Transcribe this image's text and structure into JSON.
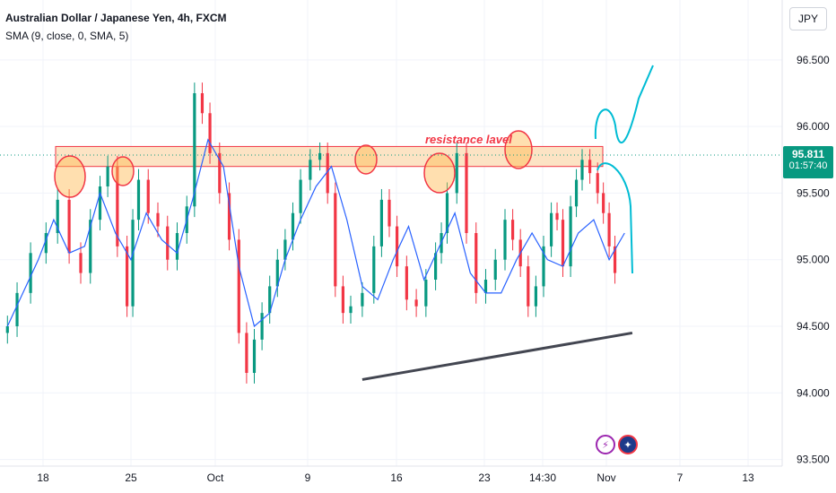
{
  "legend": {
    "title": "Australian Dollar / Japanese Yen, 4h, FXCM",
    "indicator": "SMA (9, close, 0, SMA, 5)"
  },
  "currency": "JPY",
  "last_price": {
    "value": "95.811",
    "countdown": "01:57:40"
  },
  "annotation_text": "resistance lavel",
  "colors": {
    "up": "#089981",
    "down": "#f23645",
    "sma": "#2962ff",
    "forecast": "#00bcd4",
    "zone": "#fce3c4"
  },
  "event_icons": [
    "lightning-icon",
    "australia-flag-icon"
  ],
  "chart_data": {
    "type": "candlestick",
    "title": "Australian Dollar / Japanese Yen, 4h, FXCM",
    "ylim": [
      93.45,
      96.95
    ],
    "y_ticks": [
      "96.500",
      "96.000",
      "95.500",
      "95.000",
      "94.500",
      "94.000",
      "93.500"
    ],
    "x_ticks": [
      "18",
      "25",
      "Oct",
      "9",
      "16",
      "23",
      "14:30",
      "Nov",
      "7",
      "13"
    ],
    "series": [
      {
        "name": "AUD/JPY 4h",
        "x": [
          1,
          3.5,
          7,
          11,
          14,
          17,
          20,
          22.5,
          25,
          27,
          29.5,
          32,
          33.5,
          35,
          37.5,
          40,
          42.5,
          45,
          47.5,
          49.5,
          51.5,
          53.5,
          56,
          58.5,
          61,
          63,
          65,
          67,
          69,
          71,
          73,
          75,
          77,
          79.5,
          82,
          84,
          86,
          88,
          90,
          93,
          96,
          98,
          100,
          102,
          104.5,
          107,
          109.5,
          112,
          113.5,
          115,
          117.5,
          120,
          122.5,
          125,
          127.5,
          130,
          132,
          134,
          136,
          138,
          140,
          142,
          143.5,
          145,
          147,
          148.5,
          150,
          152,
          154,
          155.5,
          157,
          158.5
        ],
        "values": [
          94.5,
          94.75,
          95.05,
          95.2,
          95.45,
          95.05,
          94.9,
          95.3,
          95.55,
          95.7,
          95.1,
          94.65,
          95.3,
          95.6,
          95.35,
          95.25,
          95.0,
          95.2,
          95.4,
          96.25,
          96.1,
          95.8,
          95.5,
          95.15,
          94.45,
          94.15,
          94.4,
          94.6,
          94.8,
          95.0,
          95.15,
          95.35,
          95.6,
          95.75,
          95.8,
          95.5,
          94.8,
          94.6,
          94.65,
          94.75,
          95.1,
          95.45,
          95.25,
          94.95,
          94.7,
          94.65,
          94.85,
          95.05,
          95.2,
          95.5,
          95.8,
          95.2,
          94.75,
          94.85,
          95.0,
          95.3,
          95.15,
          94.95,
          94.65,
          94.8,
          95.1,
          95.35,
          95.3,
          94.95,
          95.4,
          95.6,
          95.75,
          95.65,
          95.5,
          95.35,
          95.1,
          94.9
        ]
      },
      {
        "name": "SMA (9, close, 0, SMA, 5)",
        "x": [
          1,
          5,
          9,
          13,
          17,
          21,
          25,
          29,
          33,
          37,
          41,
          45,
          49,
          53,
          57,
          61,
          65,
          69,
          73,
          77,
          81,
          85,
          89,
          93,
          97,
          101,
          105,
          109,
          113,
          117,
          121,
          125,
          129,
          133,
          137,
          141,
          145,
          149,
          153,
          157,
          161
        ],
        "values": [
          94.5,
          94.75,
          95.0,
          95.3,
          95.05,
          95.1,
          95.5,
          95.2,
          95.0,
          95.35,
          95.15,
          95.05,
          95.45,
          95.9,
          95.7,
          94.95,
          94.5,
          94.6,
          95.0,
          95.3,
          95.55,
          95.7,
          95.3,
          94.8,
          94.7,
          95.0,
          95.25,
          94.85,
          95.1,
          95.35,
          94.9,
          94.75,
          94.75,
          95.0,
          95.2,
          95.0,
          94.95,
          95.2,
          95.3,
          95.0,
          95.2
        ]
      }
    ],
    "annotations": [
      {
        "type": "zone",
        "label": "resistance lavel",
        "y_range": [
          95.7,
          95.85
        ]
      },
      {
        "type": "trendline",
        "from": [
          93,
          94.1
        ],
        "to": [
          163,
          94.45
        ]
      },
      {
        "type": "forecast",
        "path": "up",
        "to": 96.5
      },
      {
        "type": "forecast",
        "path": "down",
        "to": 94.9
      }
    ]
  }
}
